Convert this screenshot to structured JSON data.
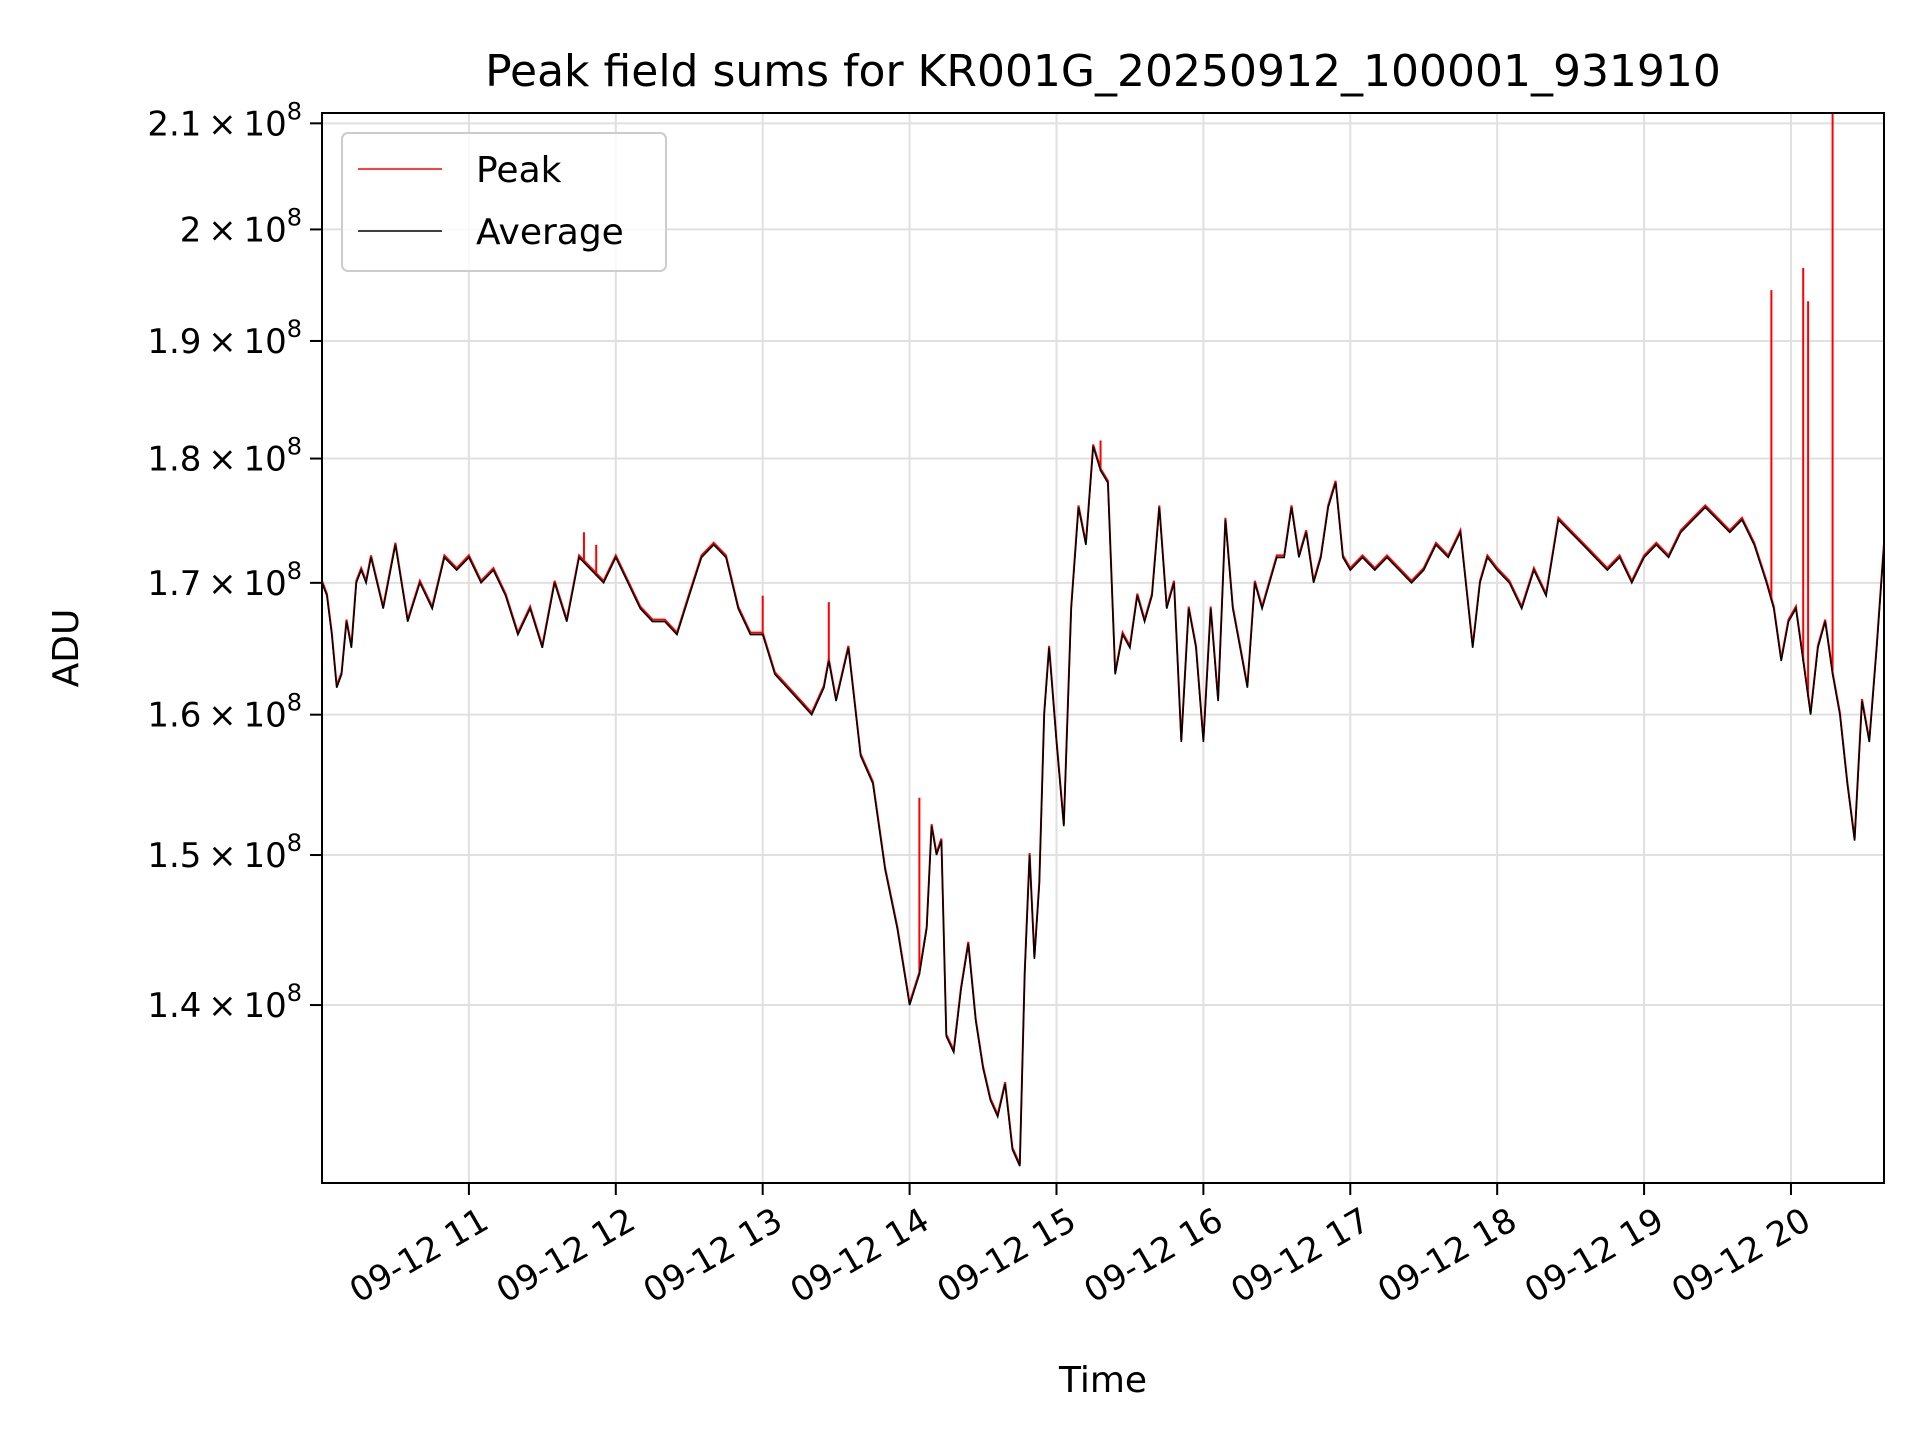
{
  "chart_data": {
    "type": "line",
    "title": "Peak field sums for KR001G_20250912_100001_931910",
    "xlabel": "Time",
    "ylabel": "ADU",
    "yscale": "log",
    "xlim": [
      "2025-09-12 10:00",
      "2025-09-12 20:38"
    ],
    "ylim": [
      129000000,
      211000000
    ],
    "grid": true,
    "legend": {
      "placement": "top-left",
      "entries": [
        "Peak",
        "Average"
      ]
    },
    "xticks": [
      {
        "value": "2025-09-12 11:00",
        "label": "09-12 11"
      },
      {
        "value": "2025-09-12 12:00",
        "label": "09-12 12"
      },
      {
        "value": "2025-09-12 13:00",
        "label": "09-12 13"
      },
      {
        "value": "2025-09-12 14:00",
        "label": "09-12 14"
      },
      {
        "value": "2025-09-12 15:00",
        "label": "09-12 15"
      },
      {
        "value": "2025-09-12 16:00",
        "label": "09-12 16"
      },
      {
        "value": "2025-09-12 17:00",
        "label": "09-12 17"
      },
      {
        "value": "2025-09-12 18:00",
        "label": "09-12 18"
      },
      {
        "value": "2025-09-12 19:00",
        "label": "09-12 19"
      },
      {
        "value": "2025-09-12 20:00",
        "label": "09-12 20"
      }
    ],
    "yticks": [
      {
        "value": 140000000,
        "mant": "1.4"
      },
      {
        "value": 150000000,
        "mant": "1.5"
      },
      {
        "value": 160000000,
        "mant": "1.6"
      },
      {
        "value": 170000000,
        "mant": "1.7"
      },
      {
        "value": 180000000,
        "mant": "1.8"
      },
      {
        "value": 190000000,
        "mant": "1.9"
      },
      {
        "value": 200000000,
        "mant": "2"
      },
      {
        "value": 210000000,
        "mant": "2.1"
      }
    ],
    "series": [
      {
        "name": "Average",
        "color": "#000000",
        "x": [
          "2025-09-12 10:00",
          "2025-09-12 10:02",
          "2025-09-12 10:04",
          "2025-09-12 10:06",
          "2025-09-12 10:08",
          "2025-09-12 10:10",
          "2025-09-12 10:12",
          "2025-09-12 10:14",
          "2025-09-12 10:16",
          "2025-09-12 10:18",
          "2025-09-12 10:20",
          "2025-09-12 10:25",
          "2025-09-12 10:30",
          "2025-09-12 10:35",
          "2025-09-12 10:40",
          "2025-09-12 10:45",
          "2025-09-12 10:50",
          "2025-09-12 10:55",
          "2025-09-12 11:00",
          "2025-09-12 11:05",
          "2025-09-12 11:10",
          "2025-09-12 11:15",
          "2025-09-12 11:20",
          "2025-09-12 11:25",
          "2025-09-12 11:30",
          "2025-09-12 11:35",
          "2025-09-12 11:40",
          "2025-09-12 11:45",
          "2025-09-12 11:50",
          "2025-09-12 11:55",
          "2025-09-12 12:00",
          "2025-09-12 12:05",
          "2025-09-12 12:10",
          "2025-09-12 12:15",
          "2025-09-12 12:20",
          "2025-09-12 12:25",
          "2025-09-12 12:30",
          "2025-09-12 12:35",
          "2025-09-12 12:40",
          "2025-09-12 12:45",
          "2025-09-12 12:50",
          "2025-09-12 12:55",
          "2025-09-12 13:00",
          "2025-09-12 13:05",
          "2025-09-12 13:10",
          "2025-09-12 13:15",
          "2025-09-12 13:20",
          "2025-09-12 13:25",
          "2025-09-12 13:27",
          "2025-09-12 13:30",
          "2025-09-12 13:35",
          "2025-09-12 13:40",
          "2025-09-12 13:45",
          "2025-09-12 13:50",
          "2025-09-12 13:55",
          "2025-09-12 14:00",
          "2025-09-12 14:04",
          "2025-09-12 14:07",
          "2025-09-12 14:09",
          "2025-09-12 14:11",
          "2025-09-12 14:13",
          "2025-09-12 14:15",
          "2025-09-12 14:18",
          "2025-09-12 14:21",
          "2025-09-12 14:24",
          "2025-09-12 14:27",
          "2025-09-12 14:30",
          "2025-09-12 14:33",
          "2025-09-12 14:36",
          "2025-09-12 14:39",
          "2025-09-12 14:42",
          "2025-09-12 14:45",
          "2025-09-12 14:47",
          "2025-09-12 14:49",
          "2025-09-12 14:51",
          "2025-09-12 14:53",
          "2025-09-12 14:55",
          "2025-09-12 14:57",
          "2025-09-12 15:00",
          "2025-09-12 15:03",
          "2025-09-12 15:06",
          "2025-09-12 15:09",
          "2025-09-12 15:12",
          "2025-09-12 15:15",
          "2025-09-12 15:18",
          "2025-09-12 15:21",
          "2025-09-12 15:24",
          "2025-09-12 15:27",
          "2025-09-12 15:30",
          "2025-09-12 15:33",
          "2025-09-12 15:36",
          "2025-09-12 15:39",
          "2025-09-12 15:42",
          "2025-09-12 15:45",
          "2025-09-12 15:48",
          "2025-09-12 15:51",
          "2025-09-12 15:54",
          "2025-09-12 15:57",
          "2025-09-12 16:00",
          "2025-09-12 16:03",
          "2025-09-12 16:06",
          "2025-09-12 16:09",
          "2025-09-12 16:12",
          "2025-09-12 16:15",
          "2025-09-12 16:18",
          "2025-09-12 16:21",
          "2025-09-12 16:24",
          "2025-09-12 16:27",
          "2025-09-12 16:30",
          "2025-09-12 16:33",
          "2025-09-12 16:36",
          "2025-09-12 16:39",
          "2025-09-12 16:42",
          "2025-09-12 16:45",
          "2025-09-12 16:48",
          "2025-09-12 16:51",
          "2025-09-12 16:54",
          "2025-09-12 16:57",
          "2025-09-12 17:00",
          "2025-09-12 17:05",
          "2025-09-12 17:10",
          "2025-09-12 17:15",
          "2025-09-12 17:20",
          "2025-09-12 17:25",
          "2025-09-12 17:30",
          "2025-09-12 17:35",
          "2025-09-12 17:40",
          "2025-09-12 17:45",
          "2025-09-12 17:50",
          "2025-09-12 17:53",
          "2025-09-12 17:56",
          "2025-09-12 18:00",
          "2025-09-12 18:05",
          "2025-09-12 18:10",
          "2025-09-12 18:15",
          "2025-09-12 18:20",
          "2025-09-12 18:25",
          "2025-09-12 18:30",
          "2025-09-12 18:35",
          "2025-09-12 18:40",
          "2025-09-12 18:45",
          "2025-09-12 18:50",
          "2025-09-12 18:55",
          "2025-09-12 19:00",
          "2025-09-12 19:05",
          "2025-09-12 19:10",
          "2025-09-12 19:15",
          "2025-09-12 19:20",
          "2025-09-12 19:25",
          "2025-09-12 19:30",
          "2025-09-12 19:35",
          "2025-09-12 19:40",
          "2025-09-12 19:45",
          "2025-09-12 19:50",
          "2025-09-12 19:53",
          "2025-09-12 19:56",
          "2025-09-12 19:59",
          "2025-09-12 20:02",
          "2025-09-12 20:05",
          "2025-09-12 20:08",
          "2025-09-12 20:11",
          "2025-09-12 20:14",
          "2025-09-12 20:17",
          "2025-09-12 20:20",
          "2025-09-12 20:23",
          "2025-09-12 20:26",
          "2025-09-12 20:29",
          "2025-09-12 20:32",
          "2025-09-12 20:35",
          "2025-09-12 20:38"
        ],
        "y": [
          170000000,
          169000000,
          166000000,
          162000000,
          163000000,
          167000000,
          165000000,
          170000000,
          171000000,
          170000000,
          172000000,
          168000000,
          173000000,
          167000000,
          170000000,
          168000000,
          172000000,
          171000000,
          172000000,
          170000000,
          171000000,
          169000000,
          166000000,
          168000000,
          165000000,
          170000000,
          167000000,
          172000000,
          171000000,
          170000000,
          172000000,
          170000000,
          168000000,
          167000000,
          167000000,
          166000000,
          169000000,
          172000000,
          173000000,
          172000000,
          168000000,
          166000000,
          166000000,
          163000000,
          162000000,
          161000000,
          160000000,
          162000000,
          164000000,
          161000000,
          165000000,
          157000000,
          155000000,
          149000000,
          145000000,
          140000000,
          142000000,
          145000000,
          152000000,
          150000000,
          151000000,
          138000000,
          137000000,
          141000000,
          144000000,
          139000000,
          136000000,
          134000000,
          133000000,
          135000000,
          131000000,
          130000000,
          142000000,
          150000000,
          143000000,
          148000000,
          160000000,
          165000000,
          158000000,
          152000000,
          168000000,
          176000000,
          173000000,
          181000000,
          179000000,
          178000000,
          163000000,
          166000000,
          165000000,
          169000000,
          167000000,
          169000000,
          176000000,
          168000000,
          170000000,
          158000000,
          168000000,
          165000000,
          158000000,
          168000000,
          161000000,
          175000000,
          168000000,
          165000000,
          162000000,
          170000000,
          168000000,
          170000000,
          172000000,
          172000000,
          176000000,
          172000000,
          174000000,
          170000000,
          172000000,
          176000000,
          178000000,
          172000000,
          171000000,
          172000000,
          171000000,
          172000000,
          171000000,
          170000000,
          171000000,
          173000000,
          172000000,
          174000000,
          165000000,
          170000000,
          172000000,
          171000000,
          170000000,
          168000000,
          171000000,
          169000000,
          175000000,
          174000000,
          173000000,
          172000000,
          171000000,
          172000000,
          170000000,
          172000000,
          173000000,
          172000000,
          174000000,
          175000000,
          176000000,
          175000000,
          174000000,
          175000000,
          173000000,
          170000000,
          168000000,
          164000000,
          167000000,
          168000000,
          164000000,
          160000000,
          165000000,
          167000000,
          163000000,
          160000000,
          155000000,
          151000000,
          161000000,
          158000000,
          165000000,
          173000000
        ]
      },
      {
        "name": "Peak",
        "color": "#ff0000",
        "spikes": [
          {
            "x": "2025-09-12 11:47",
            "y": 174000000
          },
          {
            "x": "2025-09-12 11:52",
            "y": 173000000
          },
          {
            "x": "2025-09-12 13:00",
            "y": 169000000
          },
          {
            "x": "2025-09-12 13:27",
            "y": 168500000
          },
          {
            "x": "2025-09-12 14:04",
            "y": 154000000
          },
          {
            "x": "2025-09-12 15:18",
            "y": 181500000
          },
          {
            "x": "2025-09-12 19:52",
            "y": 194500000
          },
          {
            "x": "2025-09-12 20:05",
            "y": 196500000
          },
          {
            "x": "2025-09-12 20:07",
            "y": 193500000
          },
          {
            "x": "2025-09-12 20:17",
            "y": 211000000
          }
        ]
      }
    ]
  }
}
